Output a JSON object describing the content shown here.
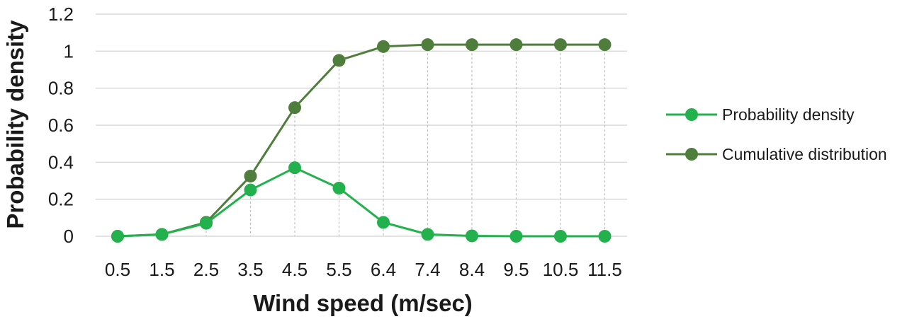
{
  "chart_data": {
    "type": "line",
    "categories": [
      "0.5",
      "1.5",
      "2.5",
      "3.5",
      "4.5",
      "5.5",
      "6.4",
      "7.4",
      "8.4",
      "9.5",
      "10.5",
      "11.5"
    ],
    "series": [
      {
        "name": "Probability density",
        "color": "#22b14c",
        "values": [
          0.0,
          0.01,
          0.07,
          0.25,
          0.37,
          0.26,
          0.075,
          0.01,
          0.002,
          0.0,
          0.0,
          0.0
        ]
      },
      {
        "name": "Cumulative distribution",
        "color": "#4f7d3c",
        "values": [
          0.0,
          0.01,
          0.075,
          0.325,
          0.695,
          0.95,
          1.025,
          1.035,
          1.035,
          1.035,
          1.035,
          1.035
        ]
      }
    ],
    "yticks": [
      "0",
      "0.2",
      "0.4",
      "0.6",
      "0.8",
      "1",
      "1.2"
    ],
    "ylim": [
      0,
      1.2
    ],
    "xlabel": "Wind speed (m/sec)",
    "ylabel": "Probability density",
    "grid": "horizontal",
    "legend": "right"
  }
}
